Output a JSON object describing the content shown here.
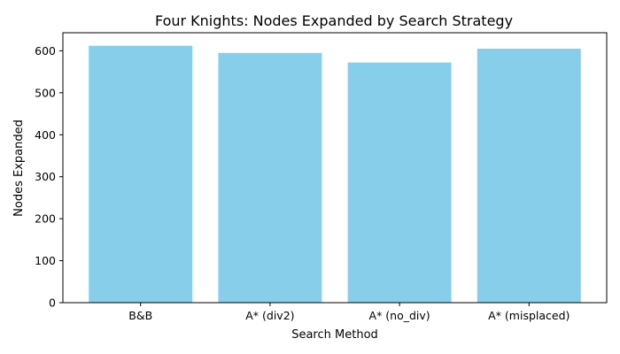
{
  "chart_data": {
    "type": "bar",
    "title": "Four Knights: Nodes Expanded by Search Strategy",
    "xlabel": "Search Method",
    "ylabel": "Nodes Expanded",
    "categories": [
      "B&B",
      "A* (div2)",
      "A* (no_div)",
      "A* (misplaced)"
    ],
    "values": [
      612,
      595,
      572,
      605
    ],
    "ylim": [
      0,
      643
    ],
    "yticks": [
      0,
      100,
      200,
      300,
      400,
      500,
      600
    ],
    "grid": false,
    "bar_color": "#87ceeb"
  }
}
